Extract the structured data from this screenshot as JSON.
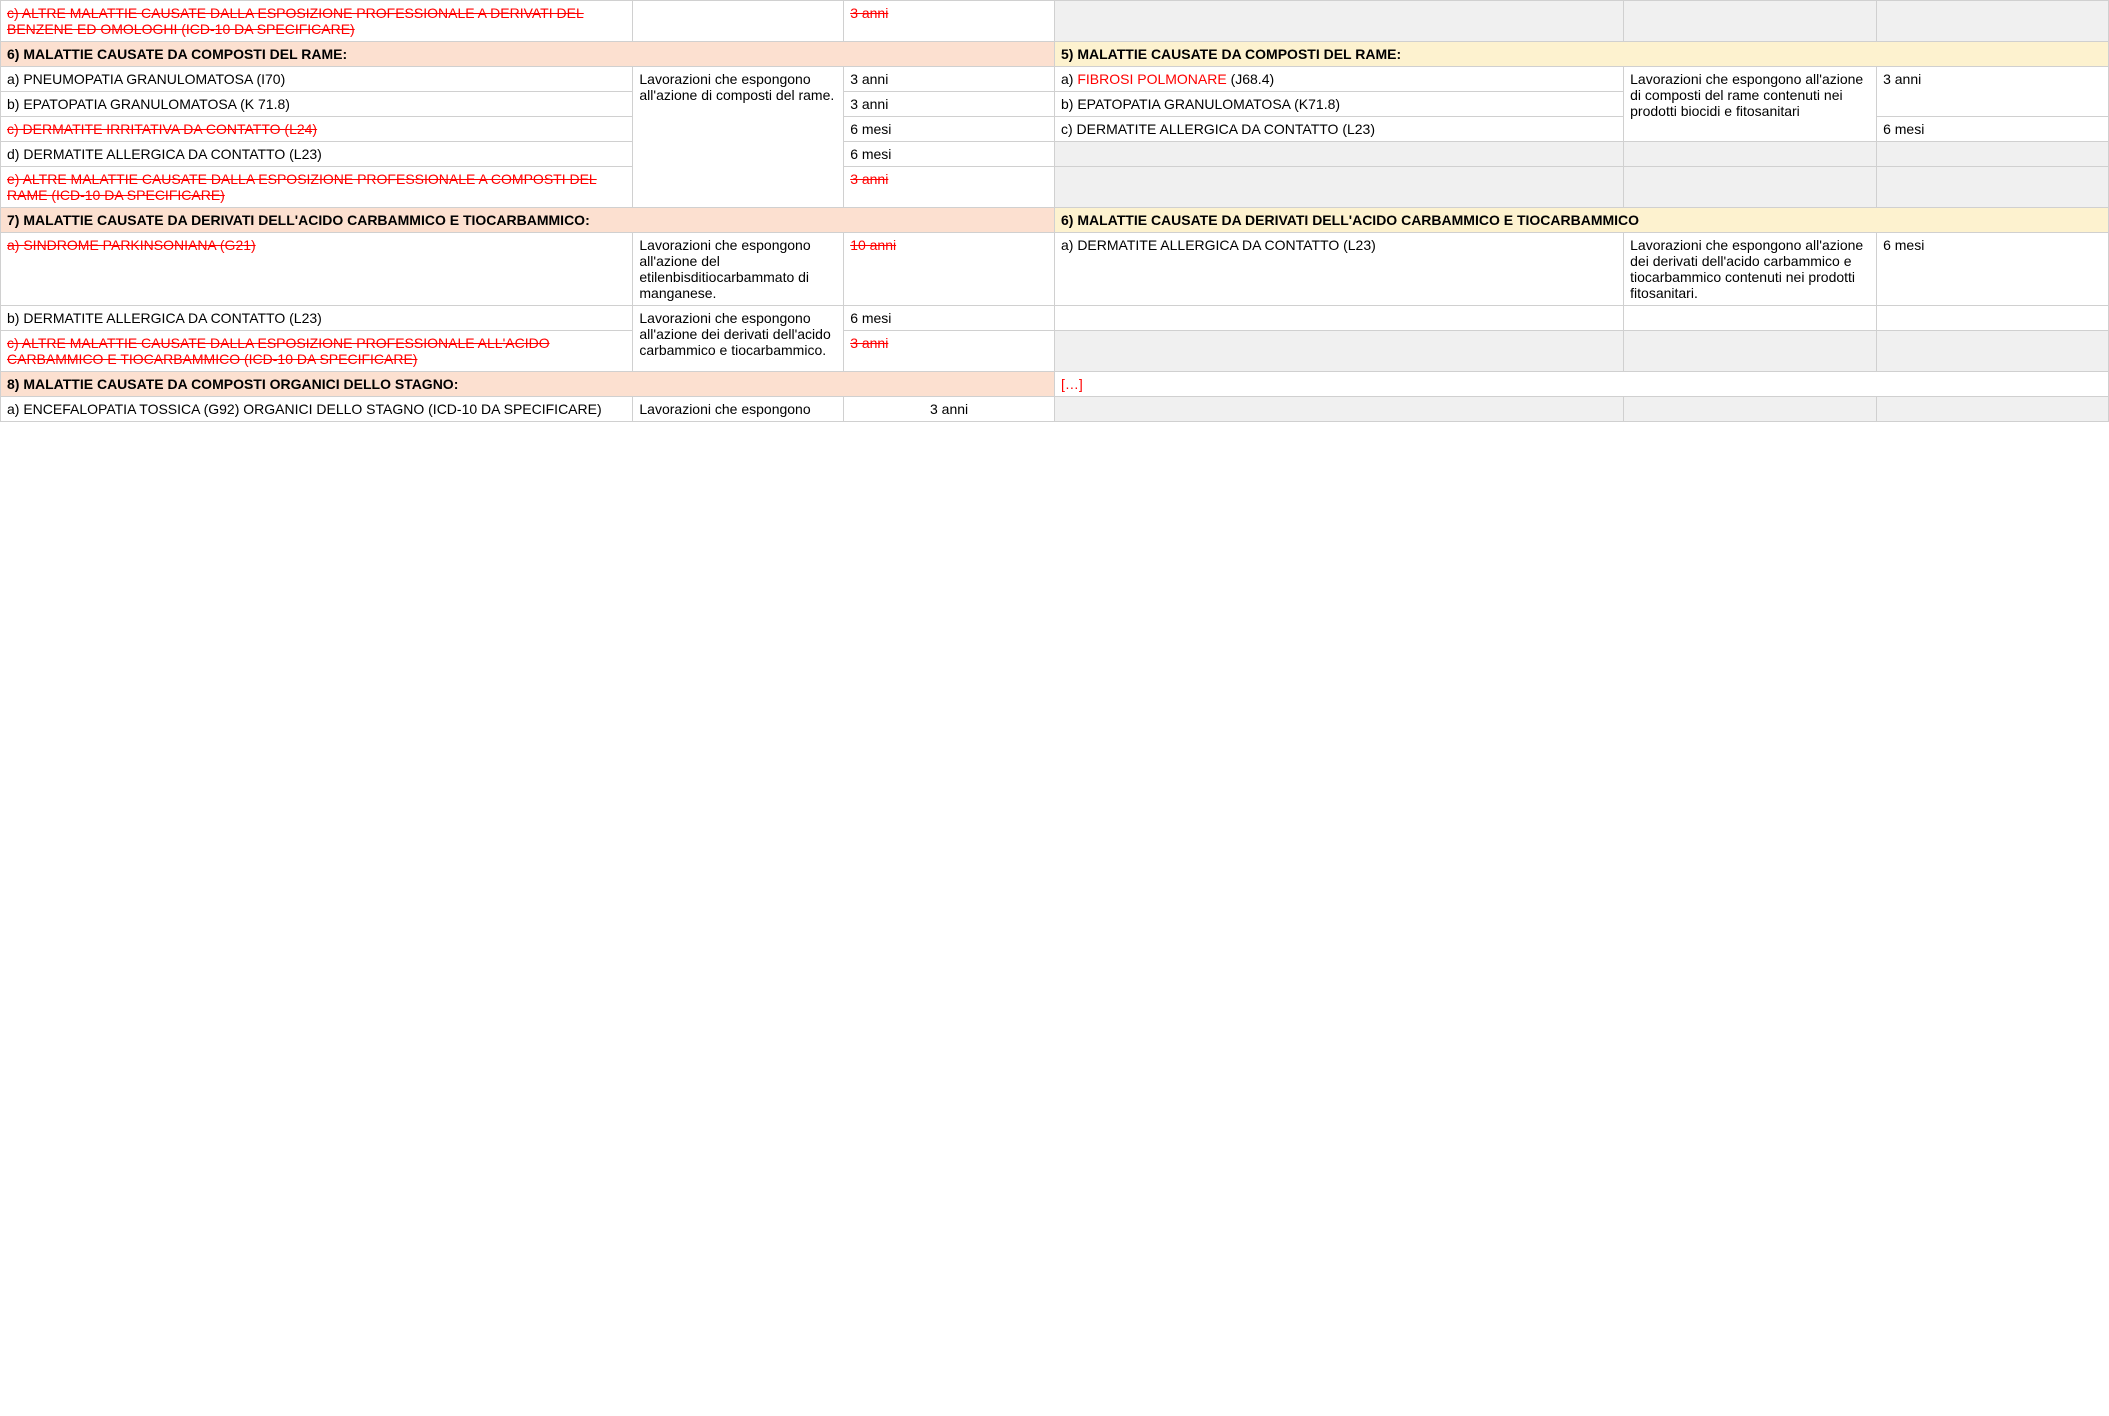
{
  "colors": {
    "hdr_left_bg": "#fce0d0",
    "hdr_right_bg": "#fdf2cf",
    "strike_color": "#ff0000",
    "grey_bg": "#f0f0f0",
    "border": "#d0d0d0"
  },
  "typography": {
    "font_family": "Verdana",
    "font_size_pt": 10
  },
  "rows": {
    "r0": {
      "a": "c) ALTRE MALATTIE CAUSATE DALLA ESPOSIZIONE PROFESSIONALE A DERIVATI DEL BENZENE ED OMOLOGHI (ICD-10 DA SPECIFICARE)",
      "c": "3 anni"
    },
    "h6": {
      "left": "  6) MALATTIE CAUSATE DA COMPOSTI DEL RAME:",
      "right": "5) MALATTIE CAUSATE DA COMPOSTI DEL RAME:"
    },
    "r6a": {
      "a": "a) PNEUMOPATIA GRANULOMATOSA (I70)",
      "b": "Lavorazioni che espongono all'azione di composti del rame.",
      "c": "3 anni",
      "d_pre": "a) ",
      "d_red": "FIBROSI POLMONARE",
      "d_post": " (J68.4)",
      "e": "Lavorazioni che espongono all'azione di composti del rame contenuti nei prodotti biocidi e fitosanitari",
      "f": "3 anni"
    },
    "r6b": {
      "a": "b) EPATOPATIA GRANULOMATOSA (K 71.8)",
      "c": "3 anni",
      "d": "b) EPATOPATIA GRANULOMATOSA (K71.8)"
    },
    "r6c": {
      "a": "c) DERMATITE IRRITATIVA DA CONTATTO (L24)",
      "c": "6 mesi",
      "d": "c) DERMATITE ALLERGICA DA CONTATTO (L23)",
      "f": "6 mesi"
    },
    "r6d": {
      "a": "d) DERMATITE ALLERGICA DA CONTATTO (L23)",
      "c": "6 mesi"
    },
    "r6e": {
      "a": "e) ALTRE MALATTIE CAUSATE DALLA ESPOSIZIONE PROFESSIONALE A COMPOSTI DEL RAME (ICD-10 DA SPECIFICARE)",
      "c": "3 anni"
    },
    "h7": {
      "left": "  7) MALATTIE CAUSATE DA DERIVATI DELL'ACIDO CARBAMMICO E TIOCARBAMMICO:",
      "right": "6) MALATTIE CAUSATE DA DERIVATI DELL'ACIDO CARBAMMICO E TIOCARBAMMICO"
    },
    "r7a": {
      "a": "a) SINDROME PARKINSONIANA (G21)",
      "b": "Lavorazioni che espongono all'azione del etilenbisditiocarbammato di manganese.",
      "c": "10 anni",
      "d": "a) DERMATITE ALLERGICA DA CONTATTO (L23)",
      "e": "Lavorazioni che espongono all'azione dei derivati dell'acido carbammico e tiocarbammico contenuti nei prodotti fitosanitari.",
      "f": "6 mesi"
    },
    "r7b": {
      "a": "b) DERMATITE ALLERGICA DA CONTATTO (L23)",
      "b": "Lavorazioni che espongono all'azione dei derivati dell'acido carbammico e tiocarbammico.",
      "c": "6 mesi"
    },
    "r7c": {
      "a": "c) ALTRE MALATTIE CAUSATE DALLA ESPOSIZIONE PROFESSIONALE ALL'ACIDO CARBAMMICO E TIOCARBAMMICO (ICD-10 DA SPECIFICARE)",
      "c": "3 anni"
    },
    "h8": {
      "left": "  8) MALATTIE CAUSATE DA COMPOSTI ORGANICI DELLO STAGNO:",
      "right": "[…]"
    },
    "r8a": {
      "a": "a) ENCEFALOPATIA TOSSICA (G92) ORGANICI DELLO STAGNO (ICD-10 DA SPECIFICARE)",
      "b": "Lavorazioni che espongono",
      "c": "3 anni"
    }
  }
}
